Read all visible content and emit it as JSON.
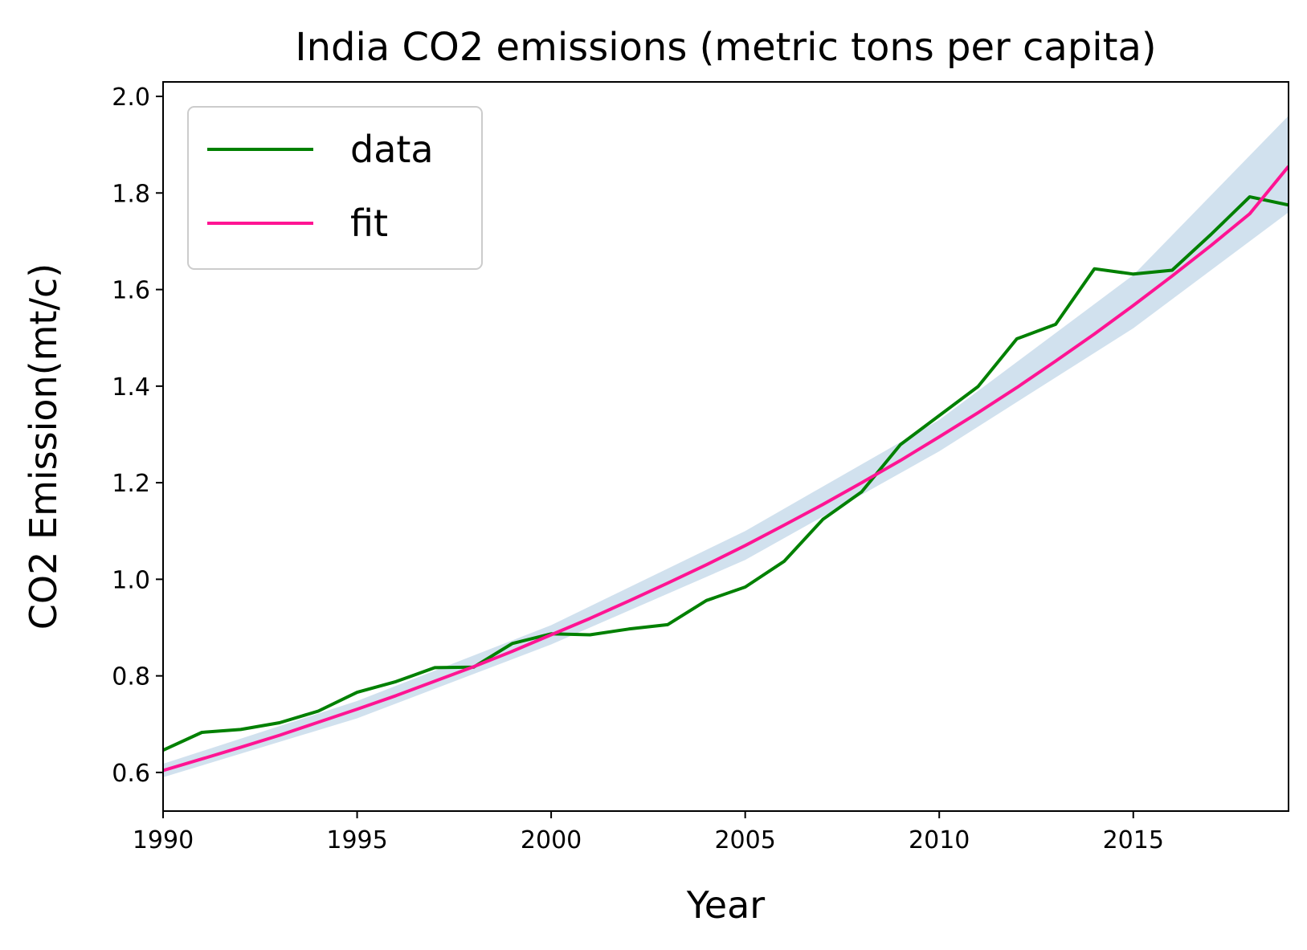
{
  "chart_data": {
    "type": "line",
    "title": "India CO2 emissions (metric tons per capita)",
    "xlabel": "Year",
    "ylabel": "CO2 Emission(mt/c)",
    "xlim": [
      1990,
      2019
    ],
    "ylim": [
      0.52,
      2.03
    ],
    "xticks": [
      1990,
      1995,
      2000,
      2005,
      2010,
      2015
    ],
    "yticks": [
      0.6,
      0.8,
      1.0,
      1.2,
      1.4,
      1.6,
      1.8,
      2.0
    ],
    "grid": false,
    "legend_position": "top-left",
    "colors": {
      "data": "#008000",
      "fit": "#ff1493",
      "band": "#b3cde3"
    },
    "series": [
      {
        "name": "data",
        "x": [
          1990,
          1991,
          1992,
          1993,
          1994,
          1995,
          1996,
          1997,
          1998,
          1999,
          2000,
          2001,
          2002,
          2003,
          2004,
          2005,
          2006,
          2007,
          2008,
          2009,
          2010,
          2011,
          2012,
          2013,
          2014,
          2015,
          2016,
          2017,
          2018,
          2019
        ],
        "y": [
          0.646,
          0.683,
          0.689,
          0.703,
          0.727,
          0.766,
          0.788,
          0.817,
          0.818,
          0.867,
          0.887,
          0.885,
          0.897,
          0.906,
          0.956,
          0.984,
          1.037,
          1.124,
          1.181,
          1.279,
          1.339,
          1.399,
          1.498,
          1.528,
          1.643,
          1.632,
          1.64,
          1.714,
          1.792,
          1.775
        ]
      },
      {
        "name": "fit",
        "x": [
          1990,
          1991,
          1992,
          1993,
          1994,
          1995,
          1996,
          1997,
          1998,
          1999,
          2000,
          2001,
          2002,
          2003,
          2004,
          2005,
          2006,
          2007,
          2008,
          2009,
          2010,
          2011,
          2012,
          2013,
          2014,
          2015,
          2016,
          2017,
          2018,
          2019
        ],
        "y": [
          0.604,
          0.628,
          0.652,
          0.677,
          0.704,
          0.731,
          0.759,
          0.789,
          0.819,
          0.851,
          0.885,
          0.919,
          0.955,
          0.992,
          1.03,
          1.07,
          1.112,
          1.155,
          1.2,
          1.246,
          1.295,
          1.345,
          1.397,
          1.452,
          1.508,
          1.567,
          1.628,
          1.691,
          1.757,
          1.855
        ]
      }
    ],
    "confidence_band": {
      "x": [
        1990,
        1995,
        2000,
        2005,
        2010,
        2015,
        2019
      ],
      "lower": [
        0.59,
        0.712,
        0.865,
        1.04,
        1.265,
        1.52,
        1.76
      ],
      "upper": [
        0.618,
        0.748,
        0.905,
        1.1,
        1.33,
        1.63,
        1.96
      ]
    }
  }
}
